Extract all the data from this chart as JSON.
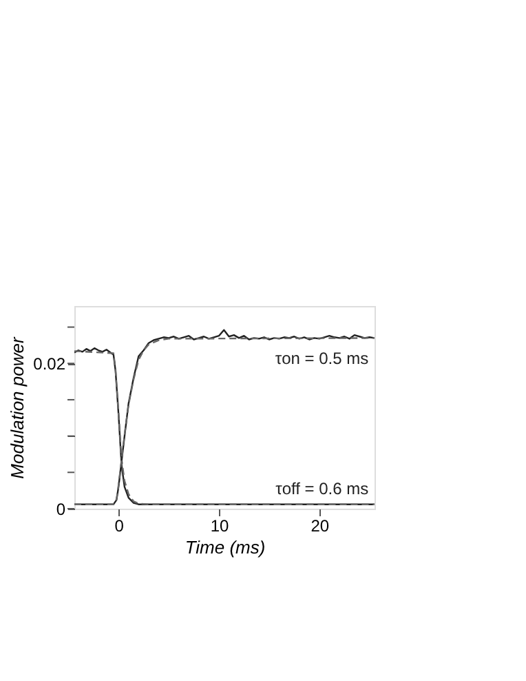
{
  "chart_data": {
    "type": "line",
    "xlabel": "Time (ms)",
    "ylabel": "Modulation power",
    "xlim": [
      -4.4,
      25.5
    ],
    "ylim": [
      0,
      0.0279
    ],
    "xticks": [
      0,
      10,
      20
    ],
    "yticks": [
      0,
      {
        "value": 0.005,
        "label": null
      },
      {
        "value": 0.01,
        "label": null
      },
      {
        "value": 0.015,
        "label": null
      },
      0.02,
      {
        "value": 0.025,
        "label": null
      }
    ],
    "grid": false,
    "marker": "none",
    "annotations": [
      "τon = 0.5 ms",
      "τoff = 0.6 ms"
    ],
    "series": [
      {
        "color": "#222222",
        "line_style": "solid",
        "x": [
          -4.4,
          -4.0,
          -3.6,
          -3.2,
          -2.8,
          -2.4,
          -2.0,
          -1.6,
          -1.2,
          -0.8,
          -0.5,
          -0.3,
          0.0,
          0.3,
          0.6,
          1.0,
          1.5,
          2.0,
          5.0,
          10.0,
          15.0,
          20.0,
          25.5
        ],
        "values": [
          0.0215,
          0.0218,
          0.0216,
          0.022,
          0.0217,
          0.0221,
          0.0218,
          0.0216,
          0.0219,
          0.0215,
          0.0212,
          0.019,
          0.013,
          0.006,
          0.003,
          0.0015,
          0.0008,
          0.0006,
          0.0006,
          0.0006,
          0.0006,
          0.0006,
          0.0006
        ]
      },
      {
        "color": "#666666",
        "line_style": "dashed",
        "x": [
          -4.4,
          -0.5,
          -0.3,
          0.0,
          0.3,
          0.6,
          1.0,
          1.5,
          2.0,
          3.0,
          25.5
        ],
        "values": [
          0.0217,
          0.0214,
          0.0192,
          0.0132,
          0.0068,
          0.0038,
          0.002,
          0.001,
          0.0007,
          0.0006,
          0.0006
        ]
      },
      {
        "color": "#222222",
        "line_style": "solid",
        "x": [
          -4.4,
          -0.5,
          -0.2,
          0.0,
          0.3,
          0.6,
          1.0,
          1.5,
          2.0,
          2.5,
          3.0,
          3.5,
          4.0,
          4.5,
          5.0,
          5.5,
          6.0,
          6.5,
          7.0,
          7.5,
          8.0,
          8.5,
          9.0,
          9.5,
          10.0,
          10.5,
          11.0,
          11.5,
          12.0,
          12.5,
          13.0,
          13.5,
          14.0,
          14.5,
          15.0,
          15.5,
          16.0,
          16.5,
          17.0,
          17.5,
          18.0,
          18.5,
          19.0,
          19.5,
          20.0,
          20.5,
          21.0,
          21.5,
          22.0,
          22.5,
          23.0,
          23.5,
          24.0,
          24.5,
          25.0,
          25.5
        ],
        "values": [
          0.0006,
          0.0006,
          0.0012,
          0.003,
          0.0065,
          0.01,
          0.0145,
          0.018,
          0.021,
          0.0218,
          0.0228,
          0.0232,
          0.0234,
          0.0236,
          0.0235,
          0.0237,
          0.0234,
          0.0236,
          0.0238,
          0.0233,
          0.0235,
          0.0237,
          0.0234,
          0.0236,
          0.0238,
          0.0246,
          0.0237,
          0.0239,
          0.0235,
          0.0238,
          0.0233,
          0.0235,
          0.0234,
          0.0236,
          0.0233,
          0.0235,
          0.0234,
          0.0236,
          0.0235,
          0.0237,
          0.0234,
          0.0236,
          0.0233,
          0.0235,
          0.0234,
          0.0236,
          0.0238,
          0.0236,
          0.0235,
          0.0237,
          0.0234,
          0.0239,
          0.0237,
          0.0235,
          0.0236,
          0.0235
        ]
      },
      {
        "color": "#666666",
        "line_style": "dashed",
        "x": [
          -4.4,
          -0.5,
          -0.2,
          0.0,
          0.3,
          0.6,
          1.0,
          1.5,
          2.0,
          2.5,
          3.0,
          4.0,
          5.0,
          25.5
        ],
        "values": [
          0.0006,
          0.0006,
          0.0013,
          0.0032,
          0.0067,
          0.0102,
          0.0143,
          0.0178,
          0.0205,
          0.0218,
          0.0226,
          0.0232,
          0.0234,
          0.0235
        ]
      }
    ]
  }
}
